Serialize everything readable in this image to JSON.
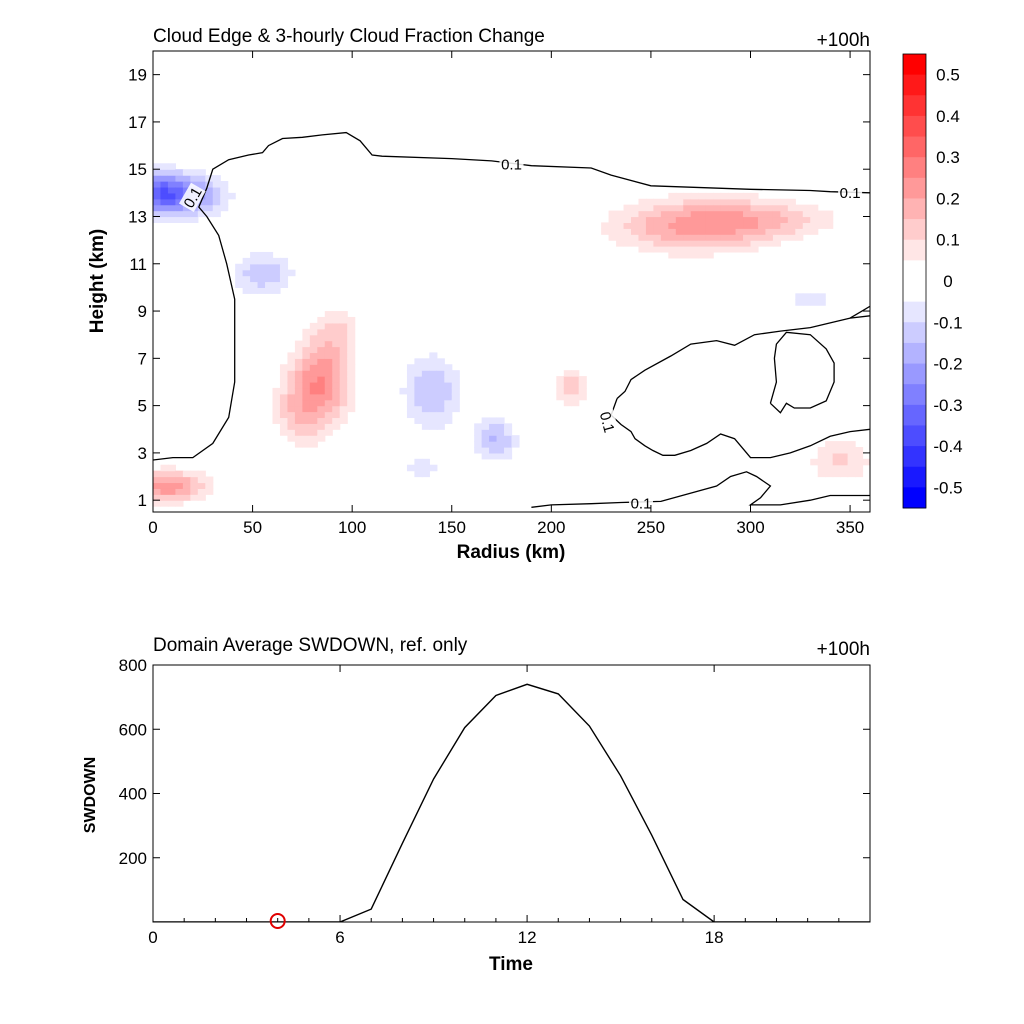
{
  "chart_data": [
    {
      "type": "heatmap",
      "title": "Cloud Edge & 3-hourly Cloud Fraction Change",
      "time_label": "+100h",
      "xlabel": "Radius (km)",
      "ylabel": "Height (km)",
      "xlim": [
        0,
        360
      ],
      "ylim": [
        0.5,
        20
      ],
      "x_ticks": [
        0,
        50,
        100,
        150,
        200,
        250,
        300,
        350
      ],
      "y_ticks": [
        1,
        3,
        5,
        7,
        9,
        11,
        13,
        15,
        17,
        19
      ],
      "colorbar": {
        "range": [
          -0.55,
          0.55
        ],
        "step": 0.05,
        "labels": [
          "0.5",
          "0.4",
          "0.3",
          "0.2",
          "0.1",
          "0",
          "-0.1",
          "-0.2",
          "-0.3",
          "-0.4",
          "-0.5"
        ],
        "low_color": "#0000ff",
        "high_color": "#ff0000"
      },
      "anomalies": [
        {
          "x": 5,
          "y": 14,
          "value": -0.38,
          "sx": 18,
          "sy": 0.9
        },
        {
          "x": 28,
          "y": 13.8,
          "value": -0.12,
          "sx": 15,
          "sy": 1.0
        },
        {
          "x": 55,
          "y": 10.6,
          "value": -0.16,
          "sx": 17,
          "sy": 1.0
        },
        {
          "x": 85,
          "y": 6.1,
          "value": 0.26,
          "sx": 16,
          "sy": 1.9
        },
        {
          "x": 72,
          "y": 4.6,
          "value": 0.12,
          "sx": 14,
          "sy": 1.6
        },
        {
          "x": 93,
          "y": 8.3,
          "value": 0.09,
          "sx": 12,
          "sy": 1.0
        },
        {
          "x": 48,
          "y": 6.5,
          "value": 0.07,
          "sx": 8,
          "sy": 1.0
        },
        {
          "x": 8,
          "y": 1.6,
          "value": 0.26,
          "sx": 20,
          "sy": 0.7
        },
        {
          "x": 140,
          "y": 5.6,
          "value": -0.17,
          "sx": 16,
          "sy": 1.7
        },
        {
          "x": 172,
          "y": 3.6,
          "value": -0.18,
          "sx": 11,
          "sy": 1.0
        },
        {
          "x": 135,
          "y": 2.3,
          "value": -0.08,
          "sx": 18,
          "sy": 0.9
        },
        {
          "x": 178,
          "y": 9.0,
          "value": 0.05,
          "sx": 16,
          "sy": 1.5
        },
        {
          "x": 195,
          "y": 11.0,
          "value": 0.07,
          "sx": 22,
          "sy": 1.0
        },
        {
          "x": 190,
          "y": 14.6,
          "value": -0.07,
          "sx": 30,
          "sy": 0.5
        },
        {
          "x": 270,
          "y": 12.6,
          "value": 0.22,
          "sx": 42,
          "sy": 1.2
        },
        {
          "x": 310,
          "y": 12.9,
          "value": 0.12,
          "sx": 40,
          "sy": 0.9
        },
        {
          "x": 210,
          "y": 5.8,
          "value": 0.16,
          "sx": 10,
          "sy": 0.8
        },
        {
          "x": 345,
          "y": 2.7,
          "value": 0.13,
          "sx": 18,
          "sy": 1.1
        },
        {
          "x": 330,
          "y": 9.5,
          "value": -0.08,
          "sx": 25,
          "sy": 1.3
        },
        {
          "x": 250,
          "y": 5.5,
          "value": 0.05,
          "sx": 20,
          "sy": 1.5
        },
        {
          "x": 60,
          "y": 2.8,
          "value": -0.05,
          "sx": 10,
          "sy": 0.8
        },
        {
          "x": 110,
          "y": 13.3,
          "value": -0.04,
          "sx": 25,
          "sy": 1.0
        }
      ],
      "contour_level_label": "0.1",
      "contours": [
        {
          "name": "upper-edge",
          "points": [
            [
              0,
              2.7
            ],
            [
              10,
              2.8
            ],
            [
              20,
              2.8
            ],
            [
              30,
              3.4
            ],
            [
              38,
              4.5
            ],
            [
              41,
              6.0
            ],
            [
              41,
              7.5
            ],
            [
              41,
              9.5
            ],
            [
              37,
              11.0
            ],
            [
              33,
              12.2
            ],
            [
              27,
              13.0
            ],
            [
              23,
              13.4
            ],
            [
              27,
              14.2
            ],
            [
              30,
              15.0
            ],
            [
              38,
              15.4
            ],
            [
              48,
              15.6
            ],
            [
              55,
              15.7
            ],
            [
              58,
              16.0
            ],
            [
              65,
              16.3
            ],
            [
              75,
              16.35
            ],
            [
              85,
              16.45
            ],
            [
              97,
              16.55
            ],
            [
              104,
              16.2
            ],
            [
              110,
              15.6
            ],
            [
              115,
              15.55
            ],
            [
              150,
              15.45
            ],
            [
              170,
              15.35
            ],
            [
              190,
              15.15
            ],
            [
              220,
              15.05
            ],
            [
              230,
              14.75
            ],
            [
              250,
              14.3
            ],
            [
              300,
              14.15
            ],
            [
              330,
              14.1
            ],
            [
              340,
              14.05
            ],
            [
              360,
              14.0
            ]
          ]
        },
        {
          "name": "inner-blob",
          "points": [
            [
              233,
              5.3
            ],
            [
              230,
              4.6
            ],
            [
              235,
              4.2
            ],
            [
              240,
              3.9
            ],
            [
              242,
              3.6
            ],
            [
              247,
              3.3
            ],
            [
              251,
              3.1
            ],
            [
              256,
              2.9
            ],
            [
              262,
              2.9
            ],
            [
              270,
              3.1
            ],
            [
              278,
              3.4
            ],
            [
              285,
              3.8
            ],
            [
              292,
              3.6
            ],
            [
              300,
              2.8
            ],
            [
              310,
              2.8
            ],
            [
              320,
              3.0
            ],
            [
              330,
              3.3
            ],
            [
              340,
              3.7
            ],
            [
              350,
              3.9
            ],
            [
              360,
              4.0
            ]
          ]
        },
        {
          "name": "inner-blob-upper",
          "points": [
            [
              233,
              5.3
            ],
            [
              237,
              5.6
            ],
            [
              240,
              6.1
            ],
            [
              247,
              6.5
            ],
            [
              260,
              7.1
            ],
            [
              270,
              7.6
            ],
            [
              283,
              7.75
            ],
            [
              292,
              7.55
            ],
            [
              302,
              8.0
            ],
            [
              315,
              8.15
            ],
            [
              330,
              8.3
            ],
            [
              340,
              8.5
            ],
            [
              350,
              8.7
            ],
            [
              360,
              8.8
            ]
          ]
        },
        {
          "name": "small-loop",
          "points": [
            [
              310,
              5.1
            ],
            [
              313,
              6.0
            ],
            [
              312,
              7.0
            ],
            [
              313,
              7.6
            ],
            [
              318,
              8.1
            ],
            [
              330,
              8.0
            ],
            [
              338,
              7.4
            ],
            [
              342,
              6.8
            ],
            [
              342,
              6.0
            ],
            [
              338,
              5.2
            ],
            [
              330,
              4.9
            ],
            [
              322,
              4.9
            ],
            [
              318,
              5.1
            ],
            [
              315,
              4.7
            ],
            [
              310,
              5.1
            ]
          ]
        },
        {
          "name": "lower-edge",
          "points": [
            [
              190,
              0.7
            ],
            [
              200,
              0.8
            ],
            [
              220,
              0.85
            ],
            [
              235,
              0.9
            ],
            [
              255,
              0.95
            ],
            [
              270,
              1.3
            ],
            [
              283,
              1.6
            ],
            [
              290,
              2.0
            ],
            [
              298,
              2.2
            ],
            [
              303,
              2.0
            ],
            [
              310,
              1.6
            ],
            [
              305,
              1.1
            ],
            [
              300,
              0.8
            ],
            [
              315,
              0.8
            ],
            [
              330,
              1.0
            ],
            [
              340,
              1.2
            ],
            [
              360,
              1.2
            ]
          ]
        },
        {
          "name": "right-edge",
          "points": [
            [
              350,
              8.7
            ],
            [
              356,
              9.0
            ],
            [
              360,
              9.2
            ]
          ]
        }
      ],
      "contour_labels": [
        {
          "x": 20,
          "y": 13.8,
          "text": "0.1",
          "angle": -60
        },
        {
          "x": 180,
          "y": 15.2,
          "text": "0.1",
          "angle": 0
        },
        {
          "x": 350,
          "y": 14.0,
          "text": "0.1",
          "angle": 0
        },
        {
          "x": 228,
          "y": 4.3,
          "text": "0.1",
          "angle": 75
        },
        {
          "x": 245,
          "y": 0.85,
          "text": "0.1",
          "angle": 0
        }
      ]
    },
    {
      "type": "line",
      "title": "Domain Average SWDOWN, ref. only",
      "time_label": "+100h",
      "xlabel": "Time",
      "ylabel": "SWDOWN",
      "xlim": [
        0,
        23
      ],
      "ylim": [
        0,
        800
      ],
      "x_ticks": [
        0,
        6,
        12,
        18
      ],
      "y_ticks": [
        200,
        400,
        600,
        800
      ],
      "series": [
        {
          "x": [
            0,
            1,
            2,
            3,
            4,
            5,
            6,
            7,
            8,
            9,
            10,
            11,
            12,
            13,
            14,
            15,
            16,
            17,
            18,
            19,
            20,
            21,
            22,
            23
          ],
          "values": [
            0,
            0,
            0,
            0,
            0,
            0,
            0,
            40,
            245,
            445,
            605,
            705,
            740,
            710,
            610,
            455,
            270,
            70,
            0,
            0,
            0,
            0,
            0,
            0
          ],
          "color": "#000000"
        }
      ],
      "marker": {
        "x": 4,
        "y": 0,
        "color": "#e00000",
        "shape": "open-circle"
      }
    }
  ]
}
